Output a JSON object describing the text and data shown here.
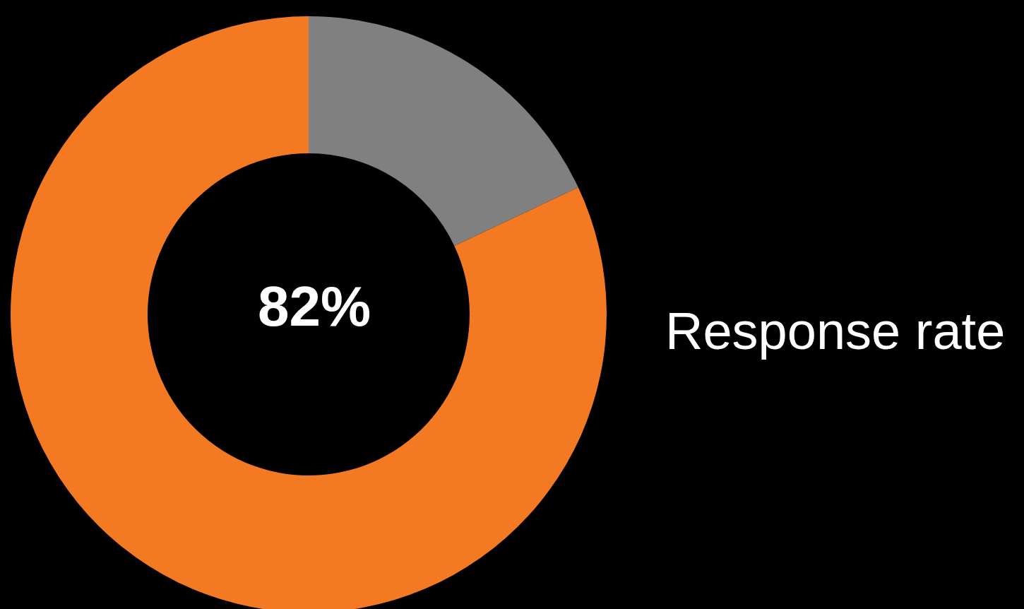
{
  "chart_data": {
    "type": "donut",
    "title": "Response rate",
    "categories": [
      null,
      null
    ],
    "values": [
      18,
      82
    ],
    "colors": [
      "#808080",
      "#f37a22"
    ],
    "annotations": [
      "82%"
    ]
  }
}
